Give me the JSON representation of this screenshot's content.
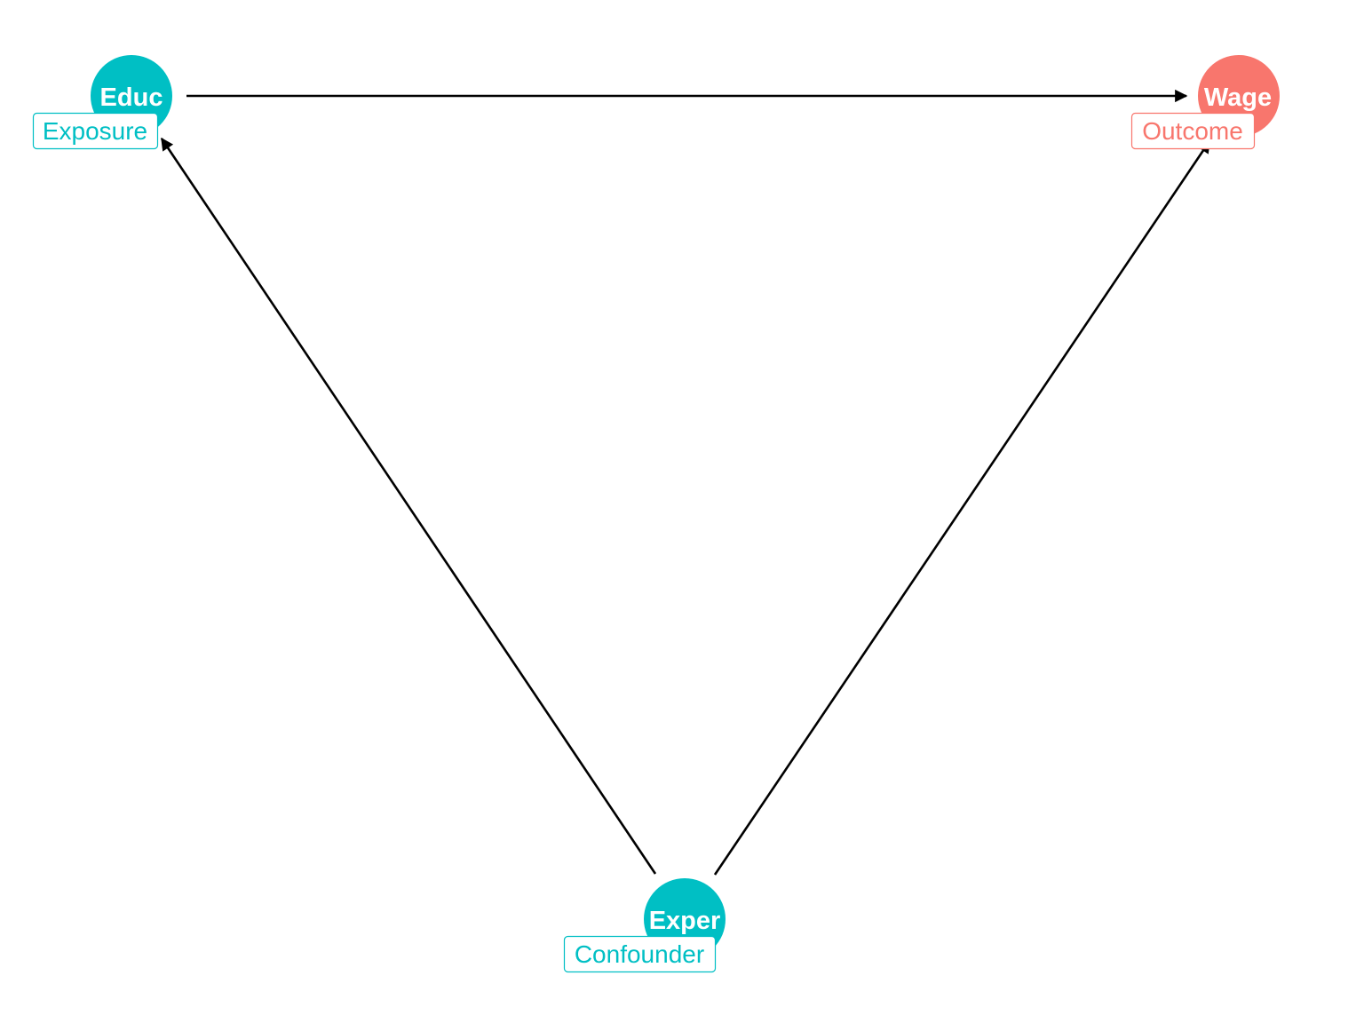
{
  "colors": {
    "exposure": "#00BFC4",
    "outcome": "#F8766D",
    "confounder": "#00BFC4",
    "edge": "#000000",
    "background": "#FFFFFF"
  },
  "nodes": {
    "educ": {
      "name": "Educ",
      "role": "Exposure"
    },
    "wage": {
      "name": "Wage",
      "role": "Outcome"
    },
    "exper": {
      "name": "Exper",
      "role": "Confounder"
    }
  },
  "edges": [
    {
      "from": "Educ",
      "to": "Wage"
    },
    {
      "from": "Exper",
      "to": "Educ"
    },
    {
      "from": "Exper",
      "to": "Wage"
    }
  ]
}
